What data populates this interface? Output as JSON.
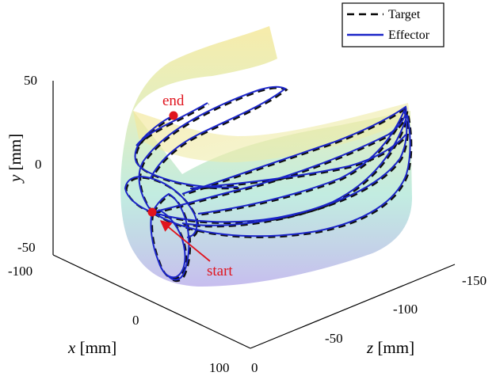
{
  "chart_data": {
    "type": "line",
    "title": "",
    "view": "3d",
    "xlabel": {
      "var": "x",
      "unit": "[mm]"
    },
    "ylabel": {
      "var": "y",
      "unit": "[mm]"
    },
    "zlabel": {
      "var": "z",
      "unit": "[mm]"
    },
    "x_ticks": [
      "-100",
      "0",
      "100"
    ],
    "y_ticks": [
      "50",
      "0",
      "-50"
    ],
    "z_ticks": [
      "0",
      "-50",
      "-100",
      "-150"
    ],
    "xlim": [
      -100,
      100
    ],
    "ylim": [
      -55,
      50
    ],
    "zlim": [
      -160,
      0
    ],
    "grid": false,
    "legend": {
      "position": "top-right",
      "entries": [
        {
          "name": "Target",
          "style": "dashed",
          "color": "#000000"
        },
        {
          "name": "Effector",
          "style": "solid",
          "color": "#1a24c8"
        }
      ]
    },
    "annotations": [
      {
        "text": "end",
        "color": "#e0141e"
      },
      {
        "text": "start",
        "color": "#e0141e"
      }
    ],
    "surface": {
      "colormap": "parula",
      "alpha": 0.45
    }
  }
}
